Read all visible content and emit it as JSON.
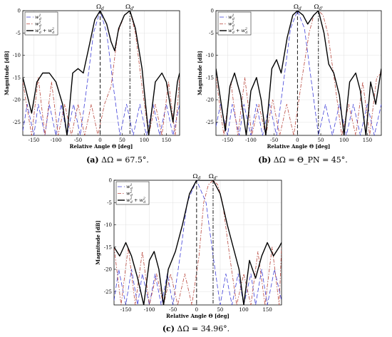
{
  "chart_data": [
    {
      "type": "line",
      "subfigure": "(a)",
      "caption": "ΔΩ = 67.5°.",
      "xlabel": "Relative Angle Θ [deg]",
      "ylabel": "Magnitude [dB]",
      "xlim": [
        -175,
        180
      ],
      "ylim": [
        -28,
        0
      ],
      "xticks": [
        -150,
        -100,
        -50,
        0,
        50,
        100,
        150
      ],
      "yticks": [
        0,
        -5,
        -10,
        -15,
        -20,
        -25
      ],
      "grid": true,
      "legend_position": "top-left",
      "markers": [
        {
          "label": "Ωd",
          "x": 0
        },
        {
          "label": "Ωd'",
          "x": 67.5
        }
      ],
      "series": [
        {
          "name": "w_d^1",
          "color": "#3f3fd9",
          "dash": "dashed",
          "x": [
            -175,
            -165,
            -150,
            -140,
            -125,
            -115,
            -100,
            -88,
            -75,
            -60,
            -45,
            -30,
            -15,
            0,
            15,
            30,
            45,
            60,
            75,
            90,
            105,
            120,
            135,
            150,
            165,
            180
          ],
          "y": [
            -27,
            -21,
            -28,
            -21,
            -28,
            -21,
            -28,
            -21,
            -28,
            -21,
            -28,
            -17,
            -5,
            0,
            -5,
            -17,
            -28,
            -21,
            -28,
            -21,
            -28,
            -21,
            -28,
            -21,
            -28,
            -21
          ]
        },
        {
          "name": "w_d^2",
          "color": "#b8463c",
          "dash": "dashdot",
          "x": [
            -175,
            -155,
            -140,
            -125,
            -110,
            -95,
            -80,
            -65,
            -50,
            -35,
            -20,
            -5,
            10,
            25,
            40,
            55,
            67.5,
            80,
            95,
            110,
            125,
            140,
            155,
            170,
            180
          ],
          "y": [
            -16,
            -28,
            -15,
            -28,
            -16,
            -28,
            -21,
            -28,
            -21,
            -28,
            -21,
            -28,
            -21,
            -17,
            -5,
            -1,
            0,
            -5,
            -17,
            -28,
            -21,
            -28,
            -16,
            -28,
            -15
          ]
        },
        {
          "name": "w_d^1 + w_d^2",
          "color": "#000000",
          "dash": "solid",
          "x": [
            -175,
            -165,
            -155,
            -143,
            -130,
            -115,
            -100,
            -85,
            -75,
            -62,
            -50,
            -38,
            -25,
            -12,
            0,
            15,
            25,
            33,
            42,
            55,
            67.5,
            80,
            95,
            110,
            125,
            140,
            150,
            165,
            175,
            180
          ],
          "y": [
            -15,
            -19,
            -23,
            -16,
            -14,
            -14,
            -16,
            -21,
            -28,
            -14,
            -13,
            -14,
            -8,
            -2,
            0,
            -3,
            -7,
            -9,
            -4,
            -1,
            0,
            -4,
            -13,
            -28,
            -16,
            -14,
            -16,
            -25,
            -16,
            -14
          ]
        }
      ]
    },
    {
      "type": "line",
      "subfigure": "(b)",
      "caption": "ΔΩ = Θ_PN = 45°.",
      "xlabel": "Relative Angle Θ [deg]",
      "ylabel": "Magnitude [dB]",
      "xlim": [
        -175,
        180
      ],
      "ylim": [
        -28,
        0
      ],
      "xticks": [
        -150,
        -100,
        -50,
        0,
        50,
        100,
        150
      ],
      "yticks": [
        0,
        -5,
        -10,
        -15,
        -20,
        -25
      ],
      "grid": true,
      "legend_position": "top-left",
      "markers": [
        {
          "label": "Ωd",
          "x": 0
        },
        {
          "label": "Ωd'",
          "x": 45
        }
      ],
      "series": [
        {
          "name": "w_d^1",
          "color": "#3f3fd9",
          "dash": "dashed",
          "x": [
            -175,
            -165,
            -150,
            -140,
            -125,
            -115,
            -100,
            -88,
            -75,
            -60,
            -45,
            -30,
            -15,
            0,
            15,
            30,
            45,
            60,
            75,
            90,
            105,
            120,
            135,
            150,
            165,
            180
          ],
          "y": [
            -26,
            -21,
            -28,
            -21,
            -28,
            -21,
            -28,
            -21,
            -28,
            -21,
            -28,
            -16,
            -4,
            0,
            -4,
            -16,
            -28,
            -21,
            -28,
            -21,
            -28,
            -21,
            -28,
            -21,
            -28,
            -21
          ]
        },
        {
          "name": "w_d^2",
          "color": "#b8463c",
          "dash": "dashdot",
          "x": [
            -175,
            -158,
            -143,
            -128,
            -113,
            -98,
            -83,
            -68,
            -53,
            -38,
            -23,
            -8,
            10,
            25,
            35,
            45,
            55,
            65,
            80,
            95,
            110,
            125,
            140,
            155,
            170,
            180
          ],
          "y": [
            -15,
            -28,
            -16,
            -28,
            -15,
            -28,
            -21,
            -28,
            -20,
            -28,
            -21,
            -28,
            -15,
            -5,
            -1,
            0,
            -1,
            -5,
            -16,
            -28,
            -21,
            -28,
            -16,
            -28,
            -15,
            -14
          ]
        },
        {
          "name": "w_d^1 + w_d^2",
          "color": "#000000",
          "dash": "solid",
          "x": [
            -175,
            -165,
            -155,
            -145,
            -135,
            -122,
            -110,
            -100,
            -88,
            -78,
            -68,
            -55,
            -45,
            -35,
            -22,
            -10,
            0,
            12,
            22,
            35,
            45,
            57,
            67,
            78,
            90,
            100,
            112,
            125,
            135,
            147,
            157,
            168,
            180
          ],
          "y": [
            -13,
            -20,
            -27,
            -17,
            -14,
            -19,
            -28,
            -18,
            -15,
            -20,
            -28,
            -13,
            -11,
            -14,
            -6,
            -1,
            0,
            -1,
            -3,
            -1,
            0,
            -5,
            -12,
            -14,
            -19,
            -28,
            -16,
            -14,
            -18,
            -28,
            -16,
            -21,
            -13
          ]
        }
      ]
    },
    {
      "type": "line",
      "subfigure": "(c)",
      "caption": "ΔΩ = 34.96°.",
      "xlabel": "Relative Angle Θ [deg]",
      "ylabel": "Magnitude [dB]",
      "xlim": [
        -175,
        180
      ],
      "ylim": [
        -28,
        0
      ],
      "xticks": [
        -150,
        -100,
        -50,
        0,
        50,
        100,
        150
      ],
      "yticks": [
        0,
        -5,
        -10,
        -15,
        -20,
        -25
      ],
      "grid": true,
      "legend_position": "top-left",
      "markers": [
        {
          "label": "Ωd",
          "x": 0
        },
        {
          "label": "Ωd'",
          "x": 34.96
        }
      ],
      "series": [
        {
          "name": "w_d^1",
          "color": "#3f3fd9",
          "dash": "dashed",
          "x": [
            -175,
            -165,
            -150,
            -138,
            -125,
            -115,
            -100,
            -88,
            -75,
            -62,
            -50,
            -35,
            -20,
            0,
            20,
            35,
            50,
            62,
            75,
            88,
            100,
            115,
            125,
            138,
            150,
            165,
            180
          ],
          "y": [
            -27,
            -20,
            -28,
            -20,
            -28,
            -21,
            -28,
            -21,
            -28,
            -21,
            -28,
            -17,
            -5,
            0,
            -5,
            -17,
            -28,
            -21,
            -28,
            -21,
            -28,
            -21,
            -28,
            -20,
            -28,
            -20,
            -27
          ]
        },
        {
          "name": "w_d^2",
          "color": "#b8463c",
          "dash": "dashdot",
          "x": [
            -175,
            -160,
            -145,
            -130,
            -115,
            -100,
            -85,
            -70,
            -55,
            -40,
            -25,
            -10,
            5,
            15,
            25,
            34.96,
            45,
            55,
            70,
            85,
            100,
            115,
            130,
            145,
            160,
            175,
            180
          ],
          "y": [
            -15,
            -28,
            -15,
            -28,
            -16,
            -28,
            -21,
            -28,
            -21,
            -28,
            -21,
            -28,
            -17,
            -5,
            -1,
            0,
            -1,
            -5,
            -17,
            -28,
            -21,
            -28,
            -16,
            -28,
            -15,
            -28,
            -15
          ]
        },
        {
          "name": "w_d^1 + w_d^2",
          "color": "#000000",
          "dash": "solid",
          "x": [
            -175,
            -163,
            -150,
            -138,
            -125,
            -112,
            -100,
            -90,
            -80,
            -70,
            -60,
            -45,
            -30,
            -15,
            0,
            17.5,
            35,
            50,
            65,
            80,
            90,
            100,
            112,
            125,
            138,
            150,
            163,
            175,
            180
          ],
          "y": [
            -15,
            -17,
            -14,
            -17,
            -22,
            -28,
            -18,
            -16,
            -20,
            -28,
            -20,
            -16,
            -10,
            -3,
            0,
            0,
            0,
            -3,
            -10,
            -16,
            -20,
            -28,
            -18,
            -22,
            -17,
            -14,
            -17,
            -15,
            -14
          ]
        }
      ]
    }
  ]
}
